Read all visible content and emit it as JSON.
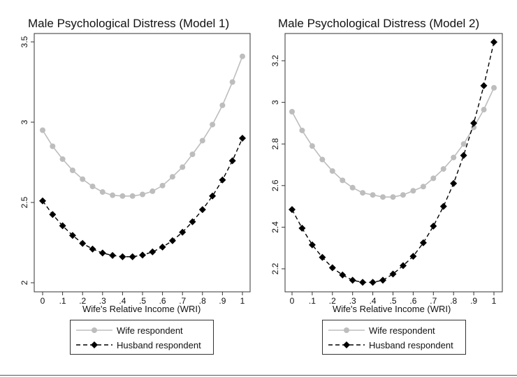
{
  "chart_data": [
    {
      "type": "line",
      "title": "Male Psychological Distress (Model 1)",
      "xlabel": "Wife's Relative Income (WRI)",
      "ylabel": "",
      "xlim": [
        0,
        1
      ],
      "ylim": [
        2,
        3.5
      ],
      "x_ticks": [
        0,
        0.1,
        0.2,
        0.3,
        0.4,
        0.5,
        0.6,
        0.7,
        0.8,
        0.9,
        1
      ],
      "x_tick_labels": [
        "0",
        ".1",
        ".2",
        ".3",
        ".4",
        ".5",
        ".6",
        ".7",
        ".8",
        ".9",
        "1"
      ],
      "y_ticks": [
        2,
        2.5,
        3,
        3.5
      ],
      "y_tick_labels": [
        "2",
        "2.5",
        "3",
        "3.5"
      ],
      "grid": false,
      "legend_position": "bottom",
      "x": [
        0,
        0.05,
        0.1,
        0.15,
        0.2,
        0.25,
        0.3,
        0.35,
        0.4,
        0.45,
        0.5,
        0.55,
        0.6,
        0.65,
        0.7,
        0.75,
        0.8,
        0.85,
        0.9,
        0.95,
        1
      ],
      "series": [
        {
          "name": "Wife respondent",
          "color": "#bdbdbd",
          "marker": "circle",
          "line": "solid",
          "values": [
            2.95,
            2.85,
            2.77,
            2.7,
            2.645,
            2.6,
            2.565,
            2.545,
            2.54,
            2.54,
            2.55,
            2.57,
            2.605,
            2.66,
            2.72,
            2.8,
            2.885,
            2.985,
            3.105,
            3.25,
            3.41
          ]
        },
        {
          "name": "Husband respondent",
          "color": "#000000",
          "marker": "diamond",
          "line": "dashed",
          "values": [
            2.51,
            2.425,
            2.355,
            2.295,
            2.245,
            2.21,
            2.185,
            2.17,
            2.162,
            2.162,
            2.172,
            2.192,
            2.222,
            2.262,
            2.315,
            2.38,
            2.455,
            2.54,
            2.64,
            2.76,
            2.9
          ]
        }
      ]
    },
    {
      "type": "line",
      "title": "Male Psychological Distress (Model 2)",
      "xlabel": "Wife's Relative Income (WRI)",
      "ylabel": "",
      "xlim": [
        0,
        1
      ],
      "ylim": [
        2.1,
        3.3
      ],
      "x_ticks": [
        0,
        0.1,
        0.2,
        0.3,
        0.4,
        0.5,
        0.6,
        0.7,
        0.8,
        0.9,
        1
      ],
      "x_tick_labels": [
        "0",
        ".1",
        ".2",
        ".3",
        ".4",
        ".5",
        ".6",
        ".7",
        ".8",
        ".9",
        "1"
      ],
      "y_ticks": [
        2.2,
        2.4,
        2.6,
        2.8,
        3,
        3.2
      ],
      "y_tick_labels": [
        "2.2",
        "2.4",
        "2.6",
        "2.8",
        "3",
        "3.2"
      ],
      "grid": false,
      "legend_position": "bottom",
      "x": [
        0,
        0.05,
        0.1,
        0.15,
        0.2,
        0.25,
        0.3,
        0.35,
        0.4,
        0.45,
        0.5,
        0.55,
        0.6,
        0.65,
        0.7,
        0.75,
        0.8,
        0.85,
        0.9,
        0.95,
        1
      ],
      "series": [
        {
          "name": "Wife respondent",
          "color": "#bdbdbd",
          "marker": "circle",
          "line": "solid",
          "values": [
            2.955,
            2.865,
            2.79,
            2.725,
            2.67,
            2.625,
            2.59,
            2.565,
            2.555,
            2.545,
            2.545,
            2.555,
            2.575,
            2.595,
            2.635,
            2.68,
            2.735,
            2.8,
            2.88,
            2.965,
            3.07
          ]
        },
        {
          "name": "Husband respondent",
          "color": "#000000",
          "marker": "diamond",
          "line": "dashed",
          "values": [
            2.485,
            2.395,
            2.315,
            2.255,
            2.205,
            2.17,
            2.145,
            2.135,
            2.135,
            2.145,
            2.175,
            2.215,
            2.26,
            2.325,
            2.405,
            2.5,
            2.61,
            2.745,
            2.9,
            3.08,
            3.29
          ]
        }
      ]
    }
  ]
}
